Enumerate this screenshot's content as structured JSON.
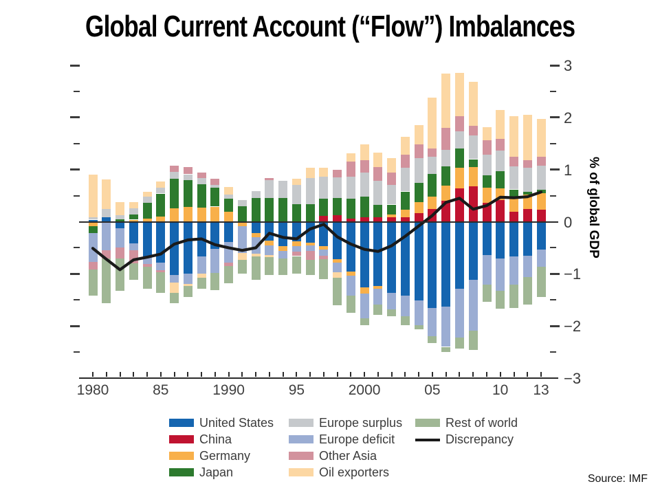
{
  "title": "Global Current Account (“Flow”) Imbalances",
  "source": "Source: IMF",
  "y_axis": {
    "unit_label": "% of global GDP",
    "min": -3,
    "max": 3,
    "minor_step": 0.5,
    "major_labels": [
      {
        "value": 3,
        "text": "3"
      },
      {
        "value": 2,
        "text": "2"
      },
      {
        "value": 1,
        "text": "1"
      },
      {
        "value": 0,
        "text": "0"
      },
      {
        "value": -1,
        "text": "−1"
      },
      {
        "value": -2,
        "text": "−2"
      },
      {
        "value": -3,
        "text": "−3"
      }
    ]
  },
  "x_axis": {
    "labels": [
      {
        "text": "1980",
        "year": 1980
      },
      {
        "text": "85",
        "year": 1985
      },
      {
        "text": "1990",
        "year": 1990
      },
      {
        "text": "95",
        "year": 1995
      },
      {
        "text": "2000",
        "year": 2000
      },
      {
        "text": "05",
        "year": 2005
      },
      {
        "text": "10",
        "year": 2010
      },
      {
        "text": "13",
        "year": 2013
      }
    ]
  },
  "chart_data": {
    "type": "bar",
    "subtype": "stacked-bars-with-line",
    "ylim": [
      -3,
      3
    ],
    "x": [
      1980,
      1981,
      1982,
      1983,
      1984,
      1985,
      1986,
      1987,
      1988,
      1989,
      1990,
      1991,
      1992,
      1993,
      1994,
      1995,
      1996,
      1997,
      1998,
      1999,
      2000,
      2001,
      2002,
      2003,
      2004,
      2005,
      2006,
      2007,
      2008,
      2009,
      2010,
      2011,
      2012,
      2013
    ],
    "series": [
      {
        "key": "united-states",
        "name": "United States",
        "color": "#1565b0",
        "values": [
          0.04,
          0.08,
          -0.12,
          -0.42,
          -0.67,
          -0.78,
          -1.02,
          -1.0,
          -0.67,
          -0.52,
          -0.39,
          0,
          -0.22,
          -0.36,
          -0.47,
          -0.38,
          -0.4,
          -0.47,
          -0.72,
          -0.95,
          -1.26,
          -1.23,
          -1.36,
          -1.42,
          -1.51,
          -1.65,
          -1.63,
          -1.28,
          -1.12,
          -0.64,
          -0.71,
          -0.67,
          -0.65,
          -0.53
        ]
      },
      {
        "key": "china",
        "name": "China",
        "color": "#c01330",
        "values": [
          0,
          0,
          0,
          0,
          0,
          0,
          0,
          0,
          0,
          0,
          0,
          0,
          0,
          0,
          0,
          0,
          0,
          0.11,
          0.12,
          0.06,
          0.09,
          0.08,
          0.08,
          0.09,
          0.17,
          0.24,
          0.4,
          0.64,
          0.68,
          0.36,
          0.42,
          0.19,
          0.24,
          0.23
        ]
      },
      {
        "key": "germany",
        "name": "Germany",
        "color": "#f8b04a",
        "values": [
          -0.08,
          0,
          0,
          0.04,
          0.06,
          0.1,
          0.26,
          0.28,
          0.27,
          0.29,
          0.19,
          -0.08,
          -0.08,
          -0.09,
          -0.09,
          -0.09,
          -0.06,
          -0.06,
          -0.07,
          -0.09,
          -0.12,
          -0.05,
          0.06,
          0.14,
          0.2,
          0.24,
          0.29,
          0.4,
          0.37,
          0.29,
          0.22,
          0.26,
          0.28,
          0.32
        ]
      },
      {
        "key": "japan",
        "name": "Japan",
        "color": "#2d7a2e",
        "values": [
          -0.14,
          0,
          0.05,
          0.1,
          0.3,
          0.44,
          0.56,
          0.52,
          0.45,
          0.36,
          0.25,
          0.3,
          0.46,
          0.46,
          0.45,
          0.34,
          0.34,
          0.33,
          0.33,
          0.38,
          0.39,
          0.24,
          0.19,
          0.35,
          0.37,
          0.44,
          0.37,
          0.37,
          0.15,
          0.24,
          0.33,
          0.17,
          0.05,
          0.06
        ]
      },
      {
        "key": "europe-surplus",
        "name": "Europe surplus",
        "color": "#c6c9cc",
        "values": [
          0.05,
          0.16,
          0.08,
          0.12,
          0.12,
          0.11,
          0.14,
          0.11,
          0.12,
          0.06,
          0.08,
          0.12,
          0.13,
          0.34,
          0.33,
          0.36,
          0.5,
          0.42,
          0.4,
          0.43,
          0.46,
          0.47,
          0.37,
          0.46,
          0.48,
          0.33,
          0.32,
          0.33,
          0.45,
          0.4,
          0.39,
          0.44,
          0.47,
          0.46
        ]
      },
      {
        "key": "europe-deficit",
        "name": "Europe deficit",
        "color": "#9badd3",
        "values": [
          -0.55,
          -0.55,
          -0.37,
          -0.13,
          -0.14,
          -0.15,
          -0.15,
          -0.19,
          -0.33,
          -0.46,
          -0.39,
          -0.52,
          -0.31,
          -0.19,
          -0.14,
          -0.1,
          -0.1,
          -0.12,
          -0.18,
          -0.38,
          -0.47,
          -0.31,
          -0.32,
          -0.39,
          -0.48,
          -0.55,
          -0.77,
          -0.94,
          -0.97,
          -0.57,
          -0.61,
          -0.54,
          -0.41,
          -0.33
        ]
      },
      {
        "key": "other-asia",
        "name": "Other Asia",
        "color": "#d2929d",
        "values": [
          -0.15,
          -0.16,
          -0.22,
          -0.25,
          -0.05,
          -0.04,
          0.12,
          0.14,
          0.11,
          0.11,
          -0.07,
          0,
          0,
          0.04,
          0,
          -0.09,
          -0.17,
          -0.07,
          0.15,
          0.29,
          0.24,
          0.26,
          0.24,
          0.25,
          0.26,
          0.16,
          0.42,
          0.29,
          0.19,
          0.27,
          0.23,
          0.19,
          0.14,
          0.18
        ]
      },
      {
        "key": "oil-exporters",
        "name": "Oil exporters",
        "color": "#fcd7a3",
        "values": [
          0.82,
          0.57,
          0.25,
          0.11,
          0.1,
          0.12,
          -0.2,
          -0.04,
          -0.07,
          0,
          0.15,
          -0.13,
          -0.05,
          -0.04,
          0,
          0.13,
          0.2,
          0.18,
          -0.1,
          0.15,
          0.31,
          0.28,
          0.28,
          0.34,
          0.37,
          0.97,
          1.04,
          0.82,
          0.85,
          0.26,
          0.56,
          0.78,
          0.87,
          0.72
        ]
      },
      {
        "key": "rest-of-world",
        "name": "Rest of world",
        "color": "#a0b795",
        "values": [
          -0.5,
          -0.86,
          -0.62,
          -0.31,
          -0.43,
          -0.4,
          -0.19,
          -0.22,
          -0.22,
          -0.33,
          -0.33,
          -0.27,
          -0.45,
          -0.34,
          -0.32,
          -0.34,
          -0.29,
          -0.38,
          -0.53,
          -0.33,
          -0.13,
          -0.2,
          -0.13,
          -0.18,
          -0.08,
          -0.13,
          -0.1,
          -0.22,
          -0.37,
          -0.33,
          -0.35,
          -0.44,
          -0.53,
          -0.59
        ]
      }
    ],
    "line_series": {
      "key": "discrepancy",
      "name": "Discrepancy",
      "color": "#1a1a1a",
      "values": [
        -0.51,
        -0.72,
        -0.92,
        -0.73,
        -0.68,
        -0.62,
        -0.43,
        -0.35,
        -0.33,
        -0.44,
        -0.5,
        -0.55,
        -0.5,
        -0.22,
        -0.3,
        -0.33,
        -0.14,
        -0.05,
        -0.29,
        -0.43,
        -0.53,
        -0.57,
        -0.46,
        -0.28,
        -0.08,
        0.12,
        0.37,
        0.45,
        0.24,
        0.31,
        0.47,
        0.46,
        0.48,
        0.57
      ]
    }
  },
  "legend": {
    "columns": [
      {
        "x": 246,
        "items": [
          {
            "label": "United States",
            "color": "#1565b0",
            "swatch": "box"
          },
          {
            "label": "China",
            "color": "#c01330",
            "swatch": "box"
          },
          {
            "label": "Germany",
            "color": "#f8b04a",
            "swatch": "box"
          },
          {
            "label": "Japan",
            "color": "#2d7a2e",
            "swatch": "box"
          }
        ]
      },
      {
        "x": 420,
        "items": [
          {
            "label": "Europe surplus",
            "color": "#c6c9cc",
            "swatch": "box"
          },
          {
            "label": "Europe deficit",
            "color": "#9badd3",
            "swatch": "box"
          },
          {
            "label": "Other Asia",
            "color": "#d2929d",
            "swatch": "box"
          },
          {
            "label": "Oil exporters",
            "color": "#fcd7a3",
            "swatch": "box"
          }
        ]
      },
      {
        "x": 604,
        "items": [
          {
            "label": "Rest of world",
            "color": "#a0b795",
            "swatch": "box"
          },
          {
            "label": "Discrepancy",
            "color": "#1a1a1a",
            "swatch": "line"
          }
        ]
      }
    ]
  }
}
